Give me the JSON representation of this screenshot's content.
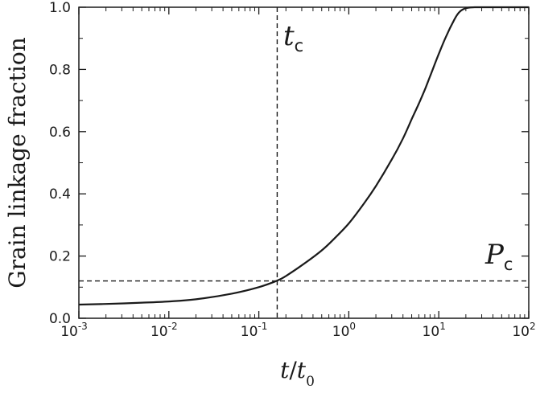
{
  "chart_data": {
    "type": "line",
    "x_scale": "log",
    "xlim": [
      0.001,
      100
    ],
    "ylim": [
      0.0,
      1.0
    ],
    "x_ticks": [
      0.001,
      0.01,
      0.1,
      1,
      10,
      100
    ],
    "x_tick_labels": [
      {
        "base": "10",
        "exp": "-3"
      },
      {
        "base": "10",
        "exp": "-2"
      },
      {
        "base": "10",
        "exp": "-1"
      },
      {
        "base": "10",
        "exp": "0"
      },
      {
        "base": "10",
        "exp": "1"
      },
      {
        "base": "10",
        "exp": "2"
      }
    ],
    "y_ticks": [
      0.0,
      0.2,
      0.4,
      0.6,
      0.8,
      1.0
    ],
    "y_tick_labels": [
      "0.0",
      "0.2",
      "0.4",
      "0.6",
      "0.8",
      "1.0"
    ],
    "xlabel": {
      "num": "t",
      "sep": "/",
      "den": "t",
      "den_sub": "0"
    },
    "ylabel": "Grain linkage fraction",
    "grid": false,
    "series": [
      {
        "x": [
          0.001,
          0.002,
          0.005,
          0.01,
          0.02,
          0.05,
          0.1,
          0.16,
          0.2,
          0.3,
          0.5,
          0.7,
          1,
          1.5,
          2,
          3,
          4,
          5,
          6,
          7,
          8,
          10,
          12,
          15,
          17,
          20,
          25,
          30,
          100
        ],
        "y": [
          0.044,
          0.046,
          0.05,
          0.054,
          0.061,
          0.079,
          0.1,
          0.121,
          0.136,
          0.17,
          0.218,
          0.258,
          0.305,
          0.372,
          0.425,
          0.51,
          0.578,
          0.64,
          0.69,
          0.735,
          0.778,
          0.85,
          0.905,
          0.962,
          0.985,
          0.997,
          1.0,
          1.0,
          1.0
        ]
      }
    ],
    "reference_lines": [
      {
        "orientation": "vertical",
        "x": 0.16,
        "style": "dashed"
      },
      {
        "orientation": "horizontal",
        "y": 0.12,
        "style": "dashed"
      }
    ],
    "annotations": [
      {
        "main": "t",
        "sub": "c"
      },
      {
        "main": "P",
        "sub": "c"
      }
    ]
  }
}
